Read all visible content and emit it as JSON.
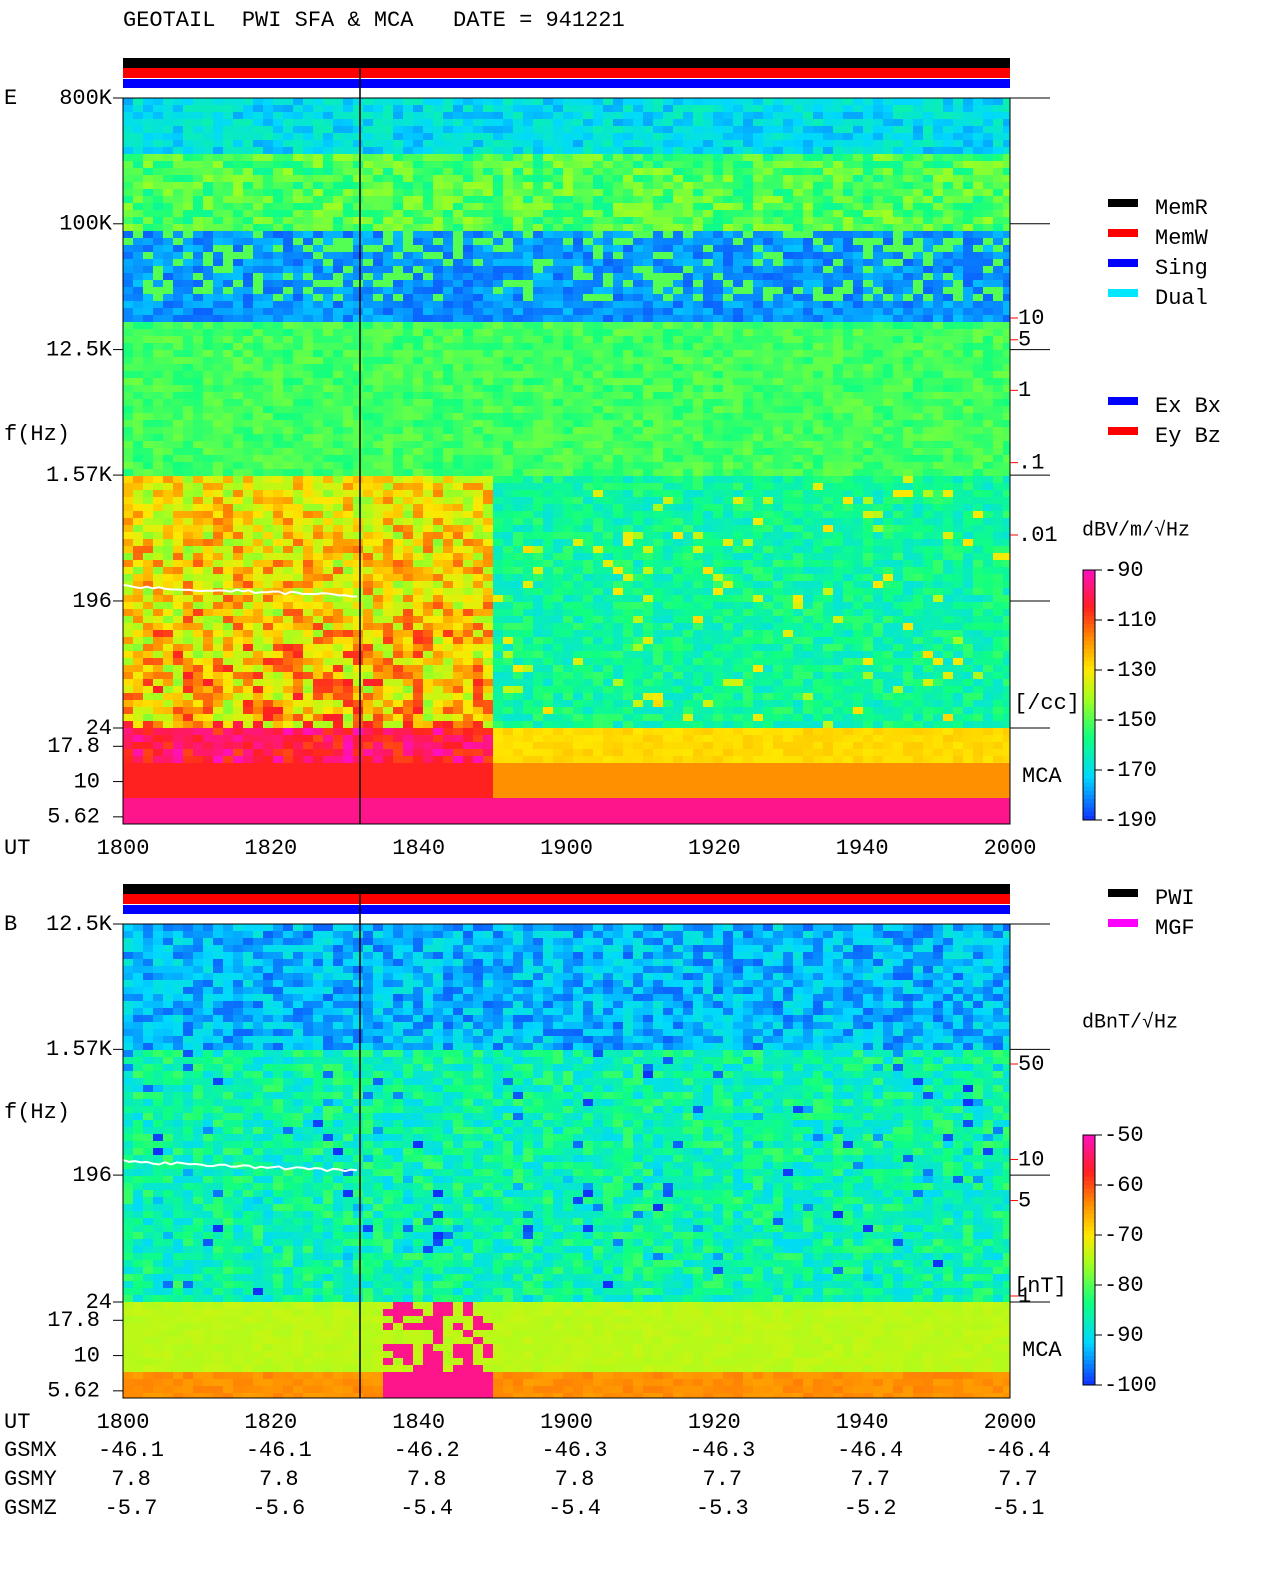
{
  "title": "GEOTAIL  PWI SFA & MCA   DATE = 941221",
  "chart_data": [
    {
      "type": "spectrogram",
      "panel_label": "E",
      "ylabel": "f(Hz)",
      "xlabel": "UT",
      "log_scale": true,
      "categories": [
        "1800",
        "1820",
        "1840",
        "1900",
        "1920",
        "1940",
        "2000"
      ],
      "ylim": [
        24,
        800000
      ],
      "yticks": [
        {
          "value": 800000,
          "label": "800K"
        },
        {
          "value": 100000,
          "label": "100K"
        },
        {
          "value": 12500,
          "label": "12.5K"
        },
        {
          "value": 1570,
          "label": "1.57K"
        },
        196,
        24
      ],
      "mca_label": "MCA",
      "mca_ylim": [
        5,
        24
      ],
      "mca_yticks": [
        17.8,
        10,
        5.62
      ],
      "y2lim": [
        0.01,
        10
      ],
      "y2ticks": [
        10,
        5,
        1,
        {
          "value": 0.1,
          "label": ".1"
        },
        {
          "value": 0.01,
          "label": ".01"
        }
      ],
      "y2label": "[/cc]",
      "y2color": "#ff0000",
      "colorbar": {
        "label": "dBV/m/√Hz",
        "lim": [
          -190,
          -90
        ],
        "ticks": [
          -90,
          -110,
          -130,
          -150,
          -170,
          -190
        ]
      },
      "legends": [
        [
          {
            "name": "MemR",
            "color": "#000000"
          },
          {
            "name": "MemW",
            "color": "#ff0000"
          },
          {
            "name": "Sing",
            "color": "#0000ff"
          },
          {
            "name": "Dual",
            "color": "#00e8ff"
          }
        ],
        [
          {
            "name": "Ex Bx",
            "color": "#0000ff"
          },
          {
            "name": "Ey Bz",
            "color": "#ff0000"
          }
        ]
      ]
    },
    {
      "type": "spectrogram",
      "panel_label": "B",
      "ylabel": "f(Hz)",
      "xlabel": "UT",
      "log_scale": true,
      "categories": [
        "1800",
        "1820",
        "1840",
        "1900",
        "1920",
        "1940",
        "2000"
      ],
      "ylim": [
        24,
        12500
      ],
      "yticks": [
        {
          "value": 12500,
          "label": "12.5K"
        },
        {
          "value": 1570,
          "label": "1.57K"
        },
        196,
        24
      ],
      "mca_label": "MCA",
      "mca_ylim": [
        5,
        24
      ],
      "mca_yticks": [
        17.8,
        10,
        5.62
      ],
      "y2lim": [
        1,
        50
      ],
      "y2ticks": [
        50,
        10,
        5,
        1
      ],
      "y2label": "[nT]",
      "y2color": "#ff0000",
      "colorbar": {
        "label": "dBnT/√Hz",
        "lim": [
          -100,
          -50
        ],
        "ticks": [
          -50,
          -60,
          -70,
          -80,
          -90,
          -100
        ]
      },
      "legends": [
        [
          {
            "name": "PWI",
            "color": "#000000"
          },
          {
            "name": "MGF",
            "color": "#ff00ff"
          }
        ]
      ]
    }
  ],
  "orbit": {
    "rows": [
      {
        "name": "GSMX",
        "values": [
          -46.1,
          -46.1,
          -46.2,
          -46.3,
          -46.3,
          -46.4,
          -46.4
        ]
      },
      {
        "name": "GSMY",
        "values": [
          7.8,
          7.8,
          7.8,
          7.8,
          7.7,
          7.7,
          7.7
        ]
      },
      {
        "name": "GSMZ",
        "values": [
          -5.7,
          -5.6,
          -5.4,
          -5.4,
          -5.3,
          -5.2,
          -5.1
        ]
      }
    ]
  }
}
